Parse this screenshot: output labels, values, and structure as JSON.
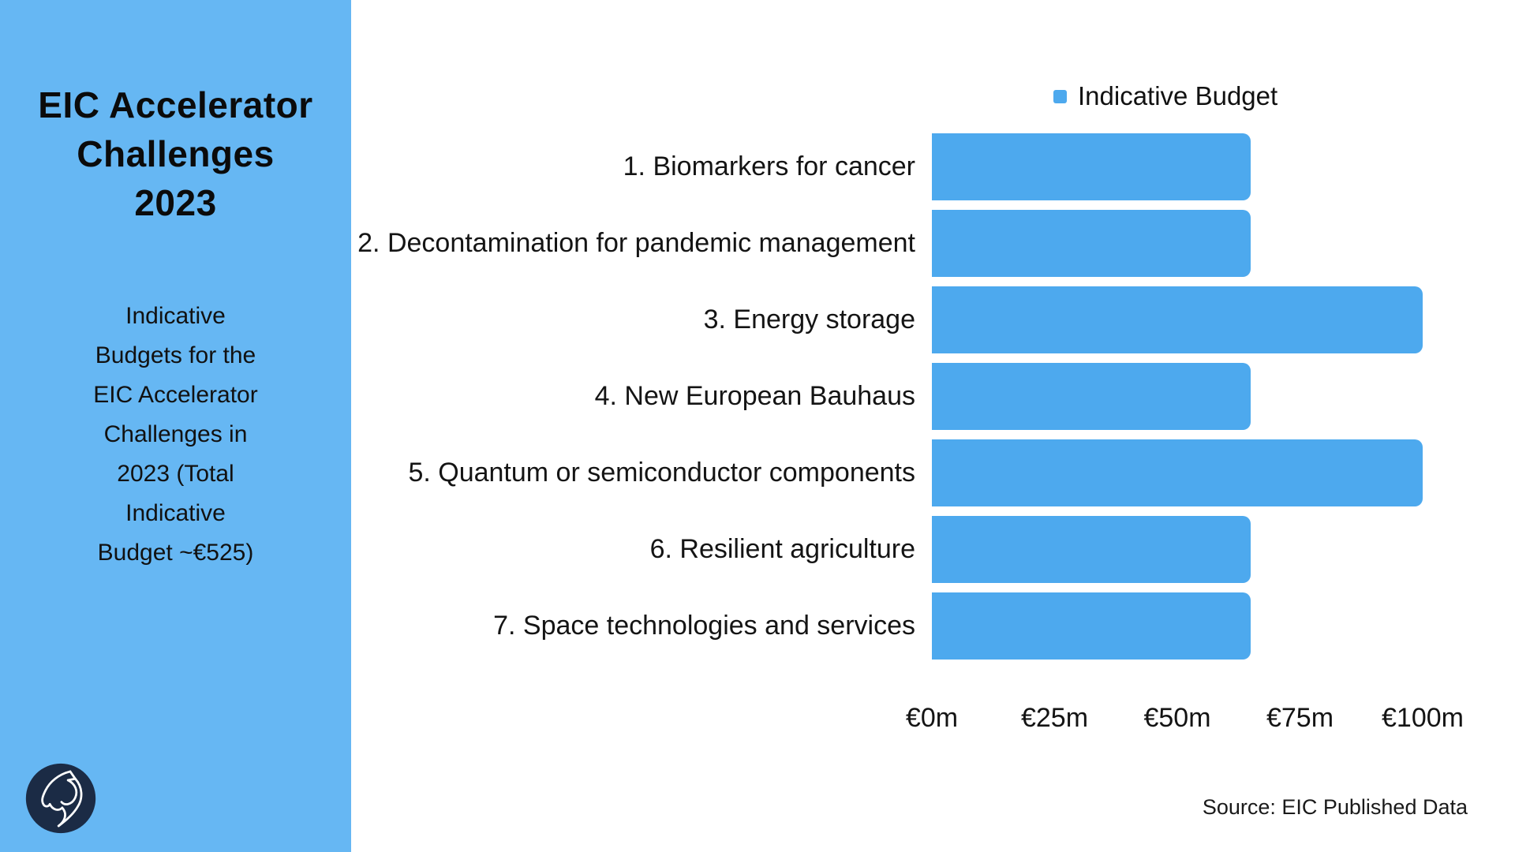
{
  "sidebar": {
    "title_lines": [
      "EIC Accelerator",
      "Challenges",
      "2023"
    ],
    "subtitle_lines": [
      "Indicative",
      "Budgets for the",
      "EIC Accelerator",
      "Challenges in",
      "2023 (Total",
      "Indicative",
      "Budget ~€525)"
    ],
    "background_color": "#66b7f3",
    "logo_icon": "horse-head-logo",
    "logo_circle_color": "#1b2b45"
  },
  "chart_data": {
    "type": "bar",
    "orientation": "horizontal",
    "legend": {
      "label": "Indicative Budget",
      "position": "top"
    },
    "categories": [
      "1. Biomarkers for cancer",
      "2. Decontamination for pandemic management",
      "3. Energy storage",
      "4. New European Bauhaus",
      "5. Quantum or semiconductor components",
      "6. Resilient agriculture",
      "7. Space technologies and services"
    ],
    "series": [
      {
        "name": "Indicative Budget",
        "values": [
          65,
          65,
          100,
          65,
          100,
          65,
          65
        ]
      }
    ],
    "unit": "€m",
    "x_ticks": [
      "€0m",
      "€25m",
      "€50m",
      "€75m",
      "€100m"
    ],
    "x_tick_values": [
      0,
      25,
      50,
      75,
      100
    ],
    "xlim": [
      0,
      100
    ],
    "bar_color": "#4da9ee",
    "grid": false,
    "axis_lines": false
  },
  "footer": {
    "source": "Source: EIC Published Data"
  }
}
